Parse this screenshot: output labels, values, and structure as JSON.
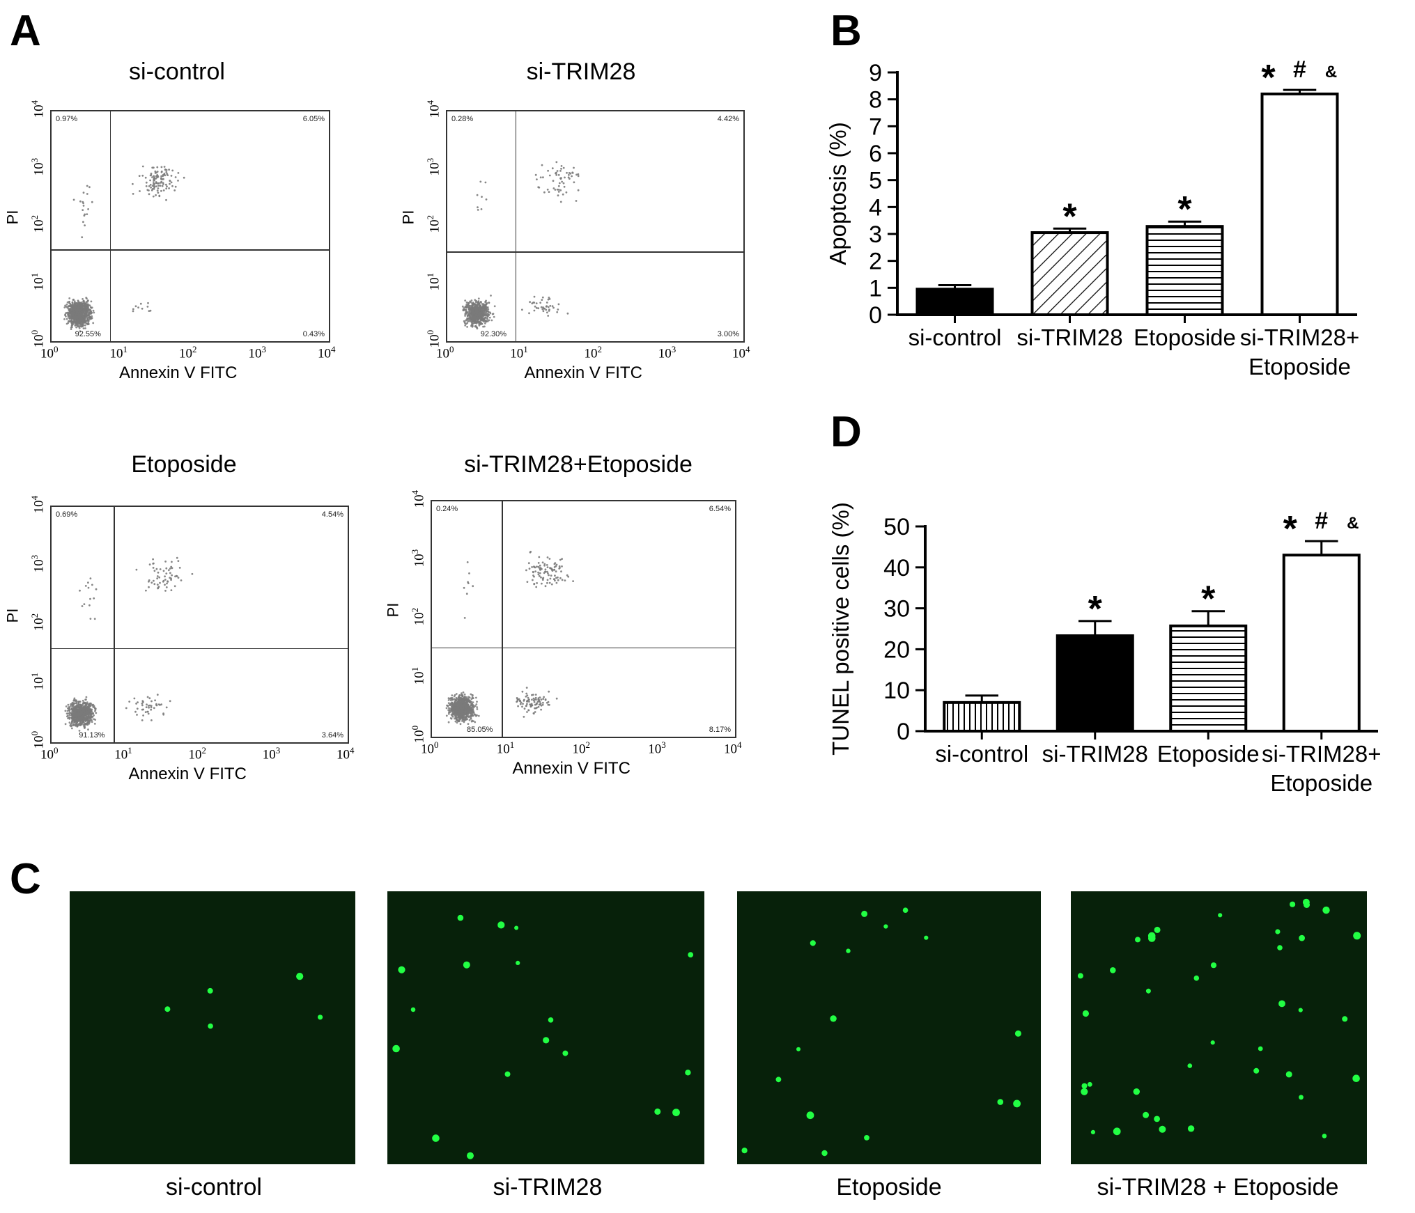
{
  "panels": {
    "A": "A",
    "B": "B",
    "C": "C",
    "D": "D"
  },
  "flow": {
    "xlabel": "Annexin V  FITC",
    "ylabel": "PI",
    "plots": [
      {
        "title": "si-control",
        "ul": "0.97%",
        "ur": "6.05%",
        "ll": "92.55%",
        "lr": "0.43%"
      },
      {
        "title": "si-TRIM28",
        "ul": "0.28%",
        "ur": "4.42%",
        "ll": "92.30%",
        "lr": "3.00%"
      },
      {
        "title": "Etoposide",
        "ul": "0.69%",
        "ur": "4.54%",
        "ll": "91.13%",
        "lr": "3.64%"
      },
      {
        "title": "si-TRIM28+Etoposide",
        "ul": "0.24%",
        "ur": "6.54%",
        "ll": "85.05%",
        "lr": "8.17%"
      }
    ]
  },
  "microscopy": {
    "captions": [
      "si-control",
      "si-TRIM28",
      "Etoposide",
      "si-TRIM28 + Etoposide"
    ],
    "background_color": "#07210a",
    "dot_color": "#22ff44"
  },
  "chart_data": [
    {
      "panel": "B",
      "type": "bar",
      "ylabel": "Apoptosis (%)",
      "ylim": [
        0,
        9
      ],
      "yticks": [
        "0",
        "1",
        "2",
        "3",
        "4",
        "5",
        "6",
        "7",
        "8",
        "9"
      ],
      "categories": [
        "si-control",
        "si-TRIM28",
        "Etoposide",
        "si-TRIM28+ Etoposide"
      ],
      "values": [
        0.95,
        3.05,
        3.28,
        8.2
      ],
      "errors": [
        0.15,
        0.15,
        0.18,
        0.15
      ],
      "fills": [
        "solid",
        "diagonal",
        "horizontal",
        "open"
      ],
      "annotations": [
        "",
        "*",
        "*",
        "* # &"
      ]
    },
    {
      "panel": "D",
      "type": "bar",
      "ylabel": "TUNEL positive cells (%)",
      "ylim": [
        0,
        50
      ],
      "yticks": [
        "0",
        "10",
        "20",
        "30",
        "40",
        "50"
      ],
      "categories": [
        "si-control",
        "si-TRIM28",
        "Etoposide",
        "si-TRIM28+ Etoposide"
      ],
      "values": [
        7.0,
        23.3,
        25.7,
        43.0
      ],
      "errors": [
        1.7,
        3.6,
        3.6,
        3.4
      ],
      "fills": [
        "vertical",
        "solid",
        "horizontal",
        "open"
      ],
      "annotations": [
        "",
        "*",
        "*",
        "* # &"
      ]
    }
  ]
}
